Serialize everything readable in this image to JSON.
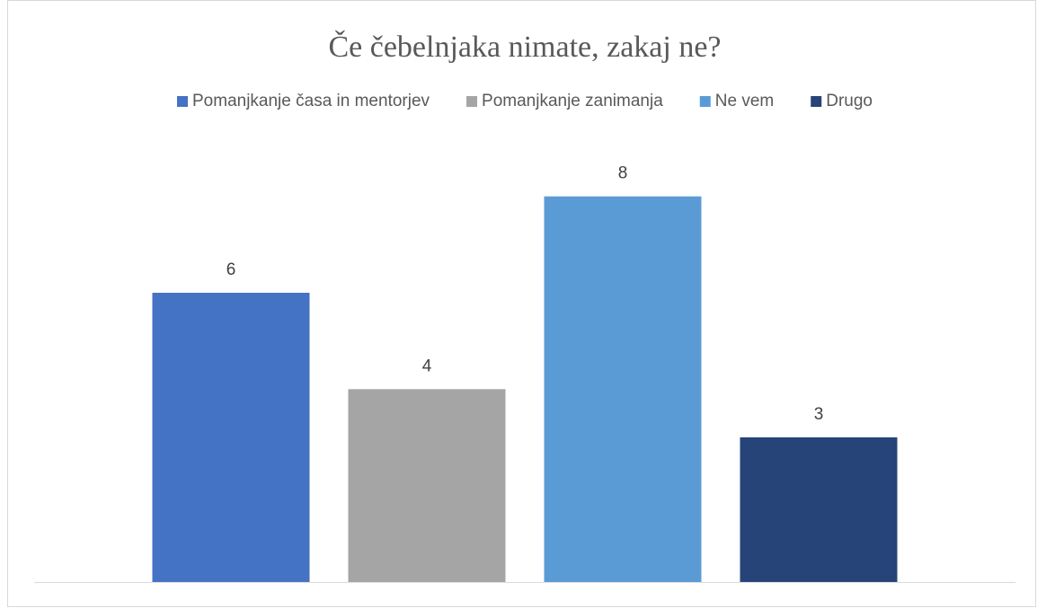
{
  "chart_data": {
    "type": "bar",
    "title": "Če čebelnjaka nimate, zakaj ne?",
    "categories": [
      null
    ],
    "series": [
      {
        "name": "Pomanjkanje časa in mentorjev",
        "color": "#4472c4",
        "values": [
          6
        ]
      },
      {
        "name": "Pomanjkanje zanimanja",
        "color": "#a5a5a5",
        "values": [
          4
        ]
      },
      {
        "name": "Ne vem",
        "color": "#5b9bd5",
        "values": [
          8
        ]
      },
      {
        "name": "Drugo",
        "color": "#264478",
        "values": [
          3
        ]
      }
    ],
    "ylim": [
      0,
      9
    ],
    "legend": "top"
  }
}
